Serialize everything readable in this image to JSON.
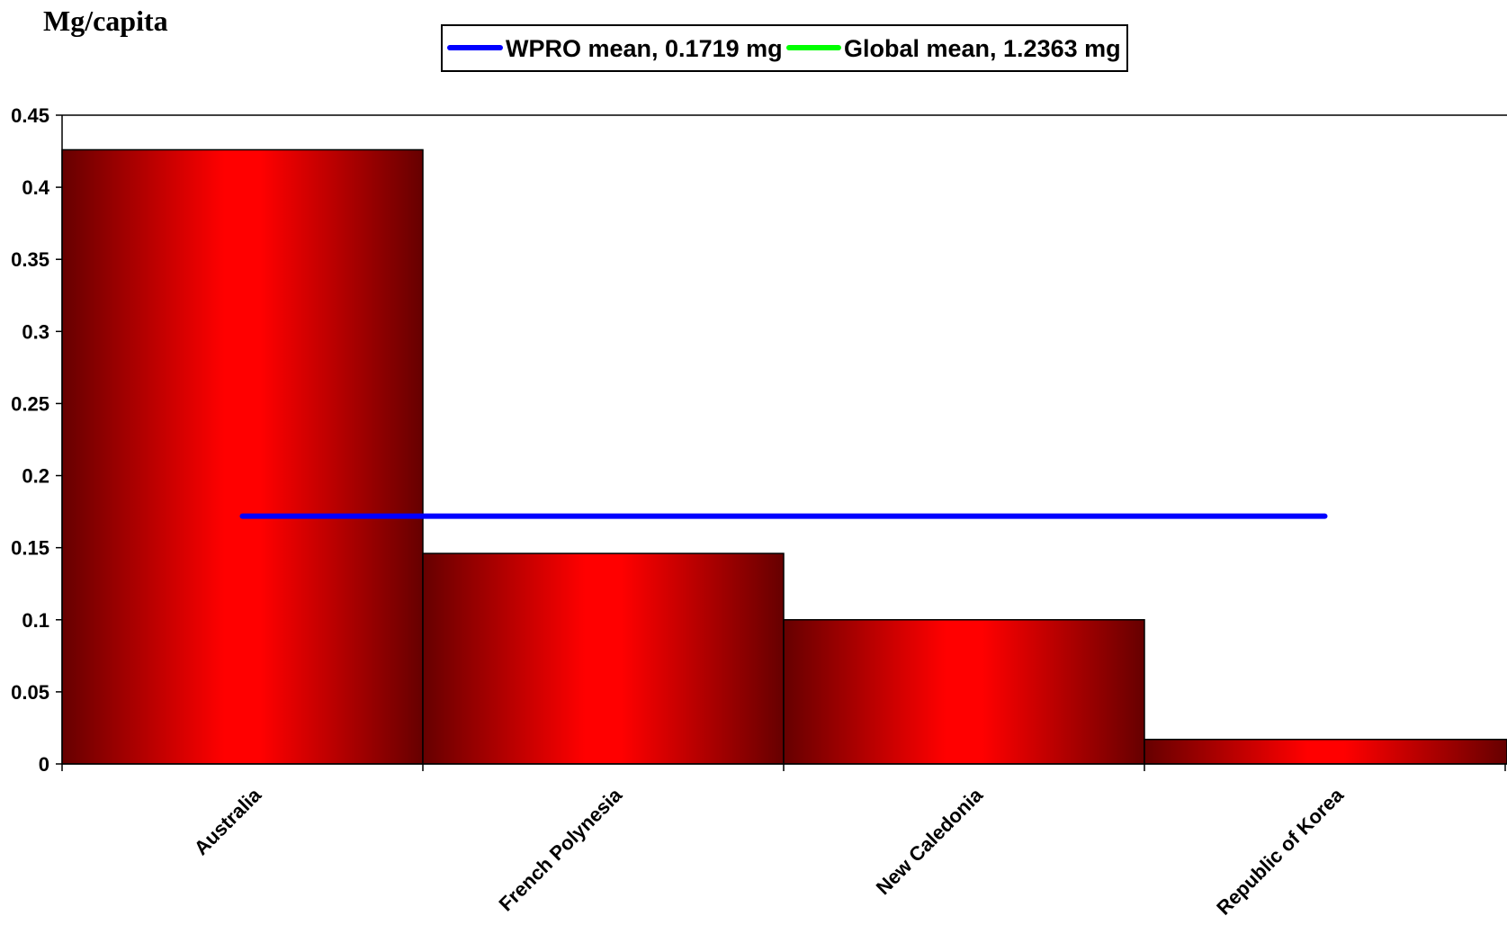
{
  "chart_data": {
    "type": "bar",
    "y_unit_label": "Mg/capita",
    "categories": [
      "Australia",
      "French Polynesia",
      "New Caledonia",
      "Republic of Korea"
    ],
    "values": [
      0.426,
      0.146,
      0.1,
      0.017
    ],
    "ylim": [
      0,
      0.45
    ],
    "yticks": [
      "0",
      "0.05",
      "0.1",
      "0.15",
      "0.2",
      "0.25",
      "0.3",
      "0.35",
      "0.4",
      "0.45"
    ],
    "series": [
      {
        "name": "WPRO mean, 0.1719 mg",
        "value": 0.1719,
        "color": "#0000ff",
        "x_from_category": 0.5,
        "x_to_category": 3.5
      },
      {
        "name": "Global mean, 1.2363 mg",
        "value": 1.2363,
        "color": "#00ff00"
      }
    ],
    "bar_gradient": {
      "edge": "#660000",
      "center": "#ff0000"
    },
    "legend_position": "top-center",
    "grid": false
  }
}
